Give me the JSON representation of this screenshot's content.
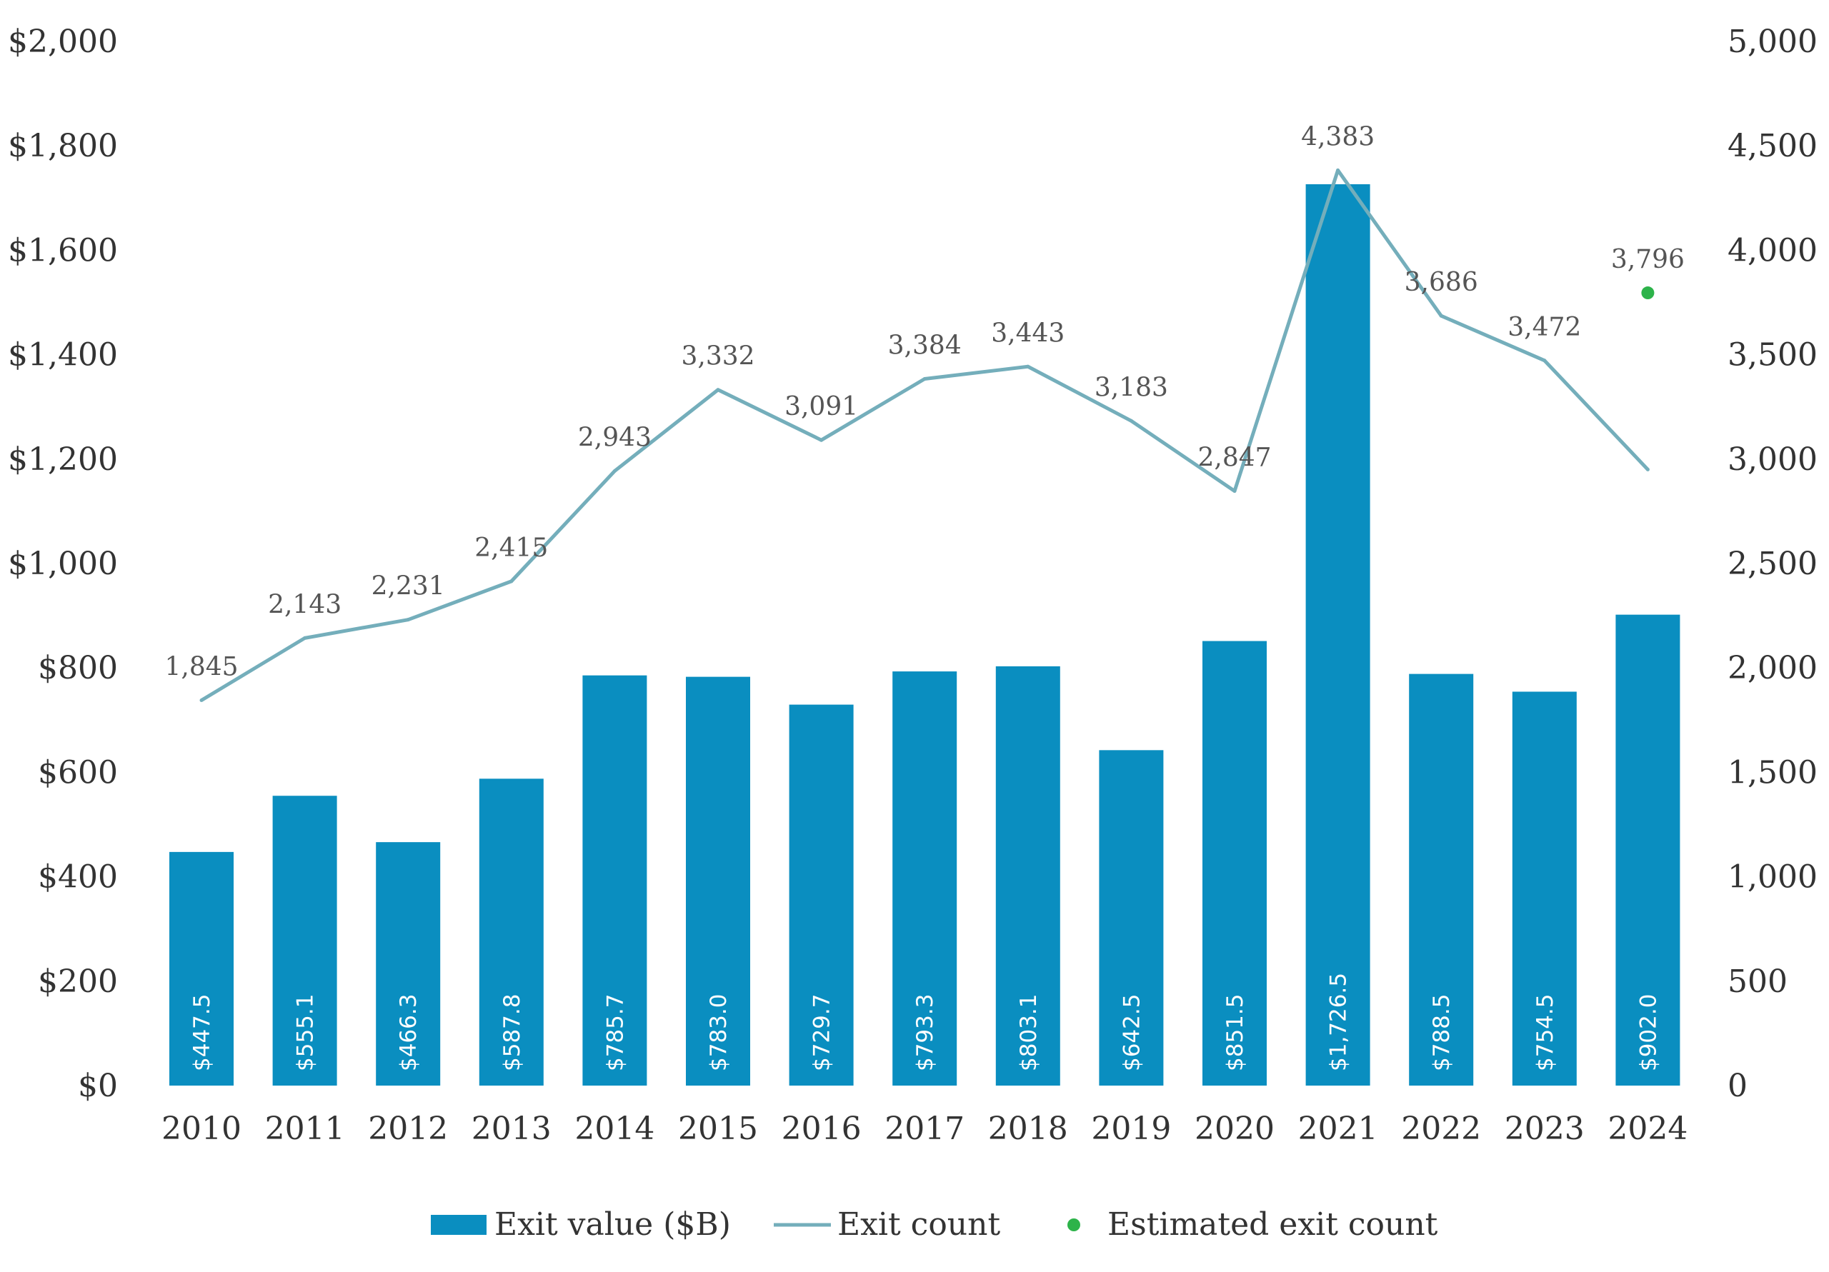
{
  "colors": {
    "bar": "#0a8ec0",
    "line": "#74aebb",
    "estimate": "#2db34a",
    "axis_text": "#333333",
    "label_text": "#555555",
    "bar_label": "#ffffff"
  },
  "chart_data": {
    "type": "bar",
    "categories": [
      "2010",
      "2011",
      "2012",
      "2013",
      "2014",
      "2015",
      "2016",
      "2017",
      "2018",
      "2019",
      "2020",
      "2021",
      "2022",
      "2023",
      "2024"
    ],
    "series": [
      {
        "name": "Exit value ($B)",
        "type": "bar",
        "axis": "left",
        "values": [
          447.5,
          555.1,
          466.3,
          587.8,
          785.7,
          783.0,
          729.7,
          793.3,
          803.1,
          642.5,
          851.5,
          1726.5,
          788.5,
          754.5,
          902.0
        ],
        "labels": [
          "$447.5",
          "$555.1",
          "$466.3",
          "$587.8",
          "$785.7",
          "$783.0",
          "$729.7",
          "$793.3",
          "$803.1",
          "$642.5",
          "$851.5",
          "$1,726.5",
          "$788.5",
          "$754.5",
          "$902.0"
        ]
      },
      {
        "name": "Exit count",
        "type": "line",
        "axis": "right",
        "values": [
          1845,
          2143,
          2231,
          2415,
          2943,
          3332,
          3091,
          3384,
          3443,
          3183,
          2847,
          4383,
          3686,
          3472,
          2950
        ],
        "labels": [
          "1,845",
          "2,143",
          "2,231",
          "2,415",
          "2,943",
          "3,332",
          "3,091",
          "3,384",
          "3,443",
          "3,183",
          "2,847",
          "4,383",
          "3,686",
          "3,472",
          ""
        ]
      },
      {
        "name": "Estimated exit count",
        "type": "scatter",
        "axis": "right",
        "category": "2024",
        "value": 3796,
        "label": "3,796"
      }
    ],
    "y_left": {
      "ylim": [
        0,
        2000
      ],
      "ticks": [
        0,
        200,
        400,
        600,
        800,
        1000,
        1200,
        1400,
        1600,
        1800,
        2000
      ],
      "tick_labels": [
        "$0",
        "$200",
        "$400",
        "$600",
        "$800",
        "$1,000",
        "$1,200",
        "$1,400",
        "$1,600",
        "$1,800",
        "$2,000"
      ]
    },
    "y_right": {
      "ylim": [
        0,
        5000
      ],
      "ticks": [
        0,
        500,
        1000,
        1500,
        2000,
        2500,
        3000,
        3500,
        4000,
        4500,
        5000
      ],
      "tick_labels": [
        "0",
        "500",
        "1,000",
        "1,500",
        "2,000",
        "2,500",
        "3,000",
        "3,500",
        "4,000",
        "4,500",
        "5,000"
      ]
    },
    "grid": false,
    "legend": {
      "position": "bottom",
      "items": [
        "Exit value ($B)",
        "Exit count",
        "Estimated exit count"
      ]
    }
  }
}
